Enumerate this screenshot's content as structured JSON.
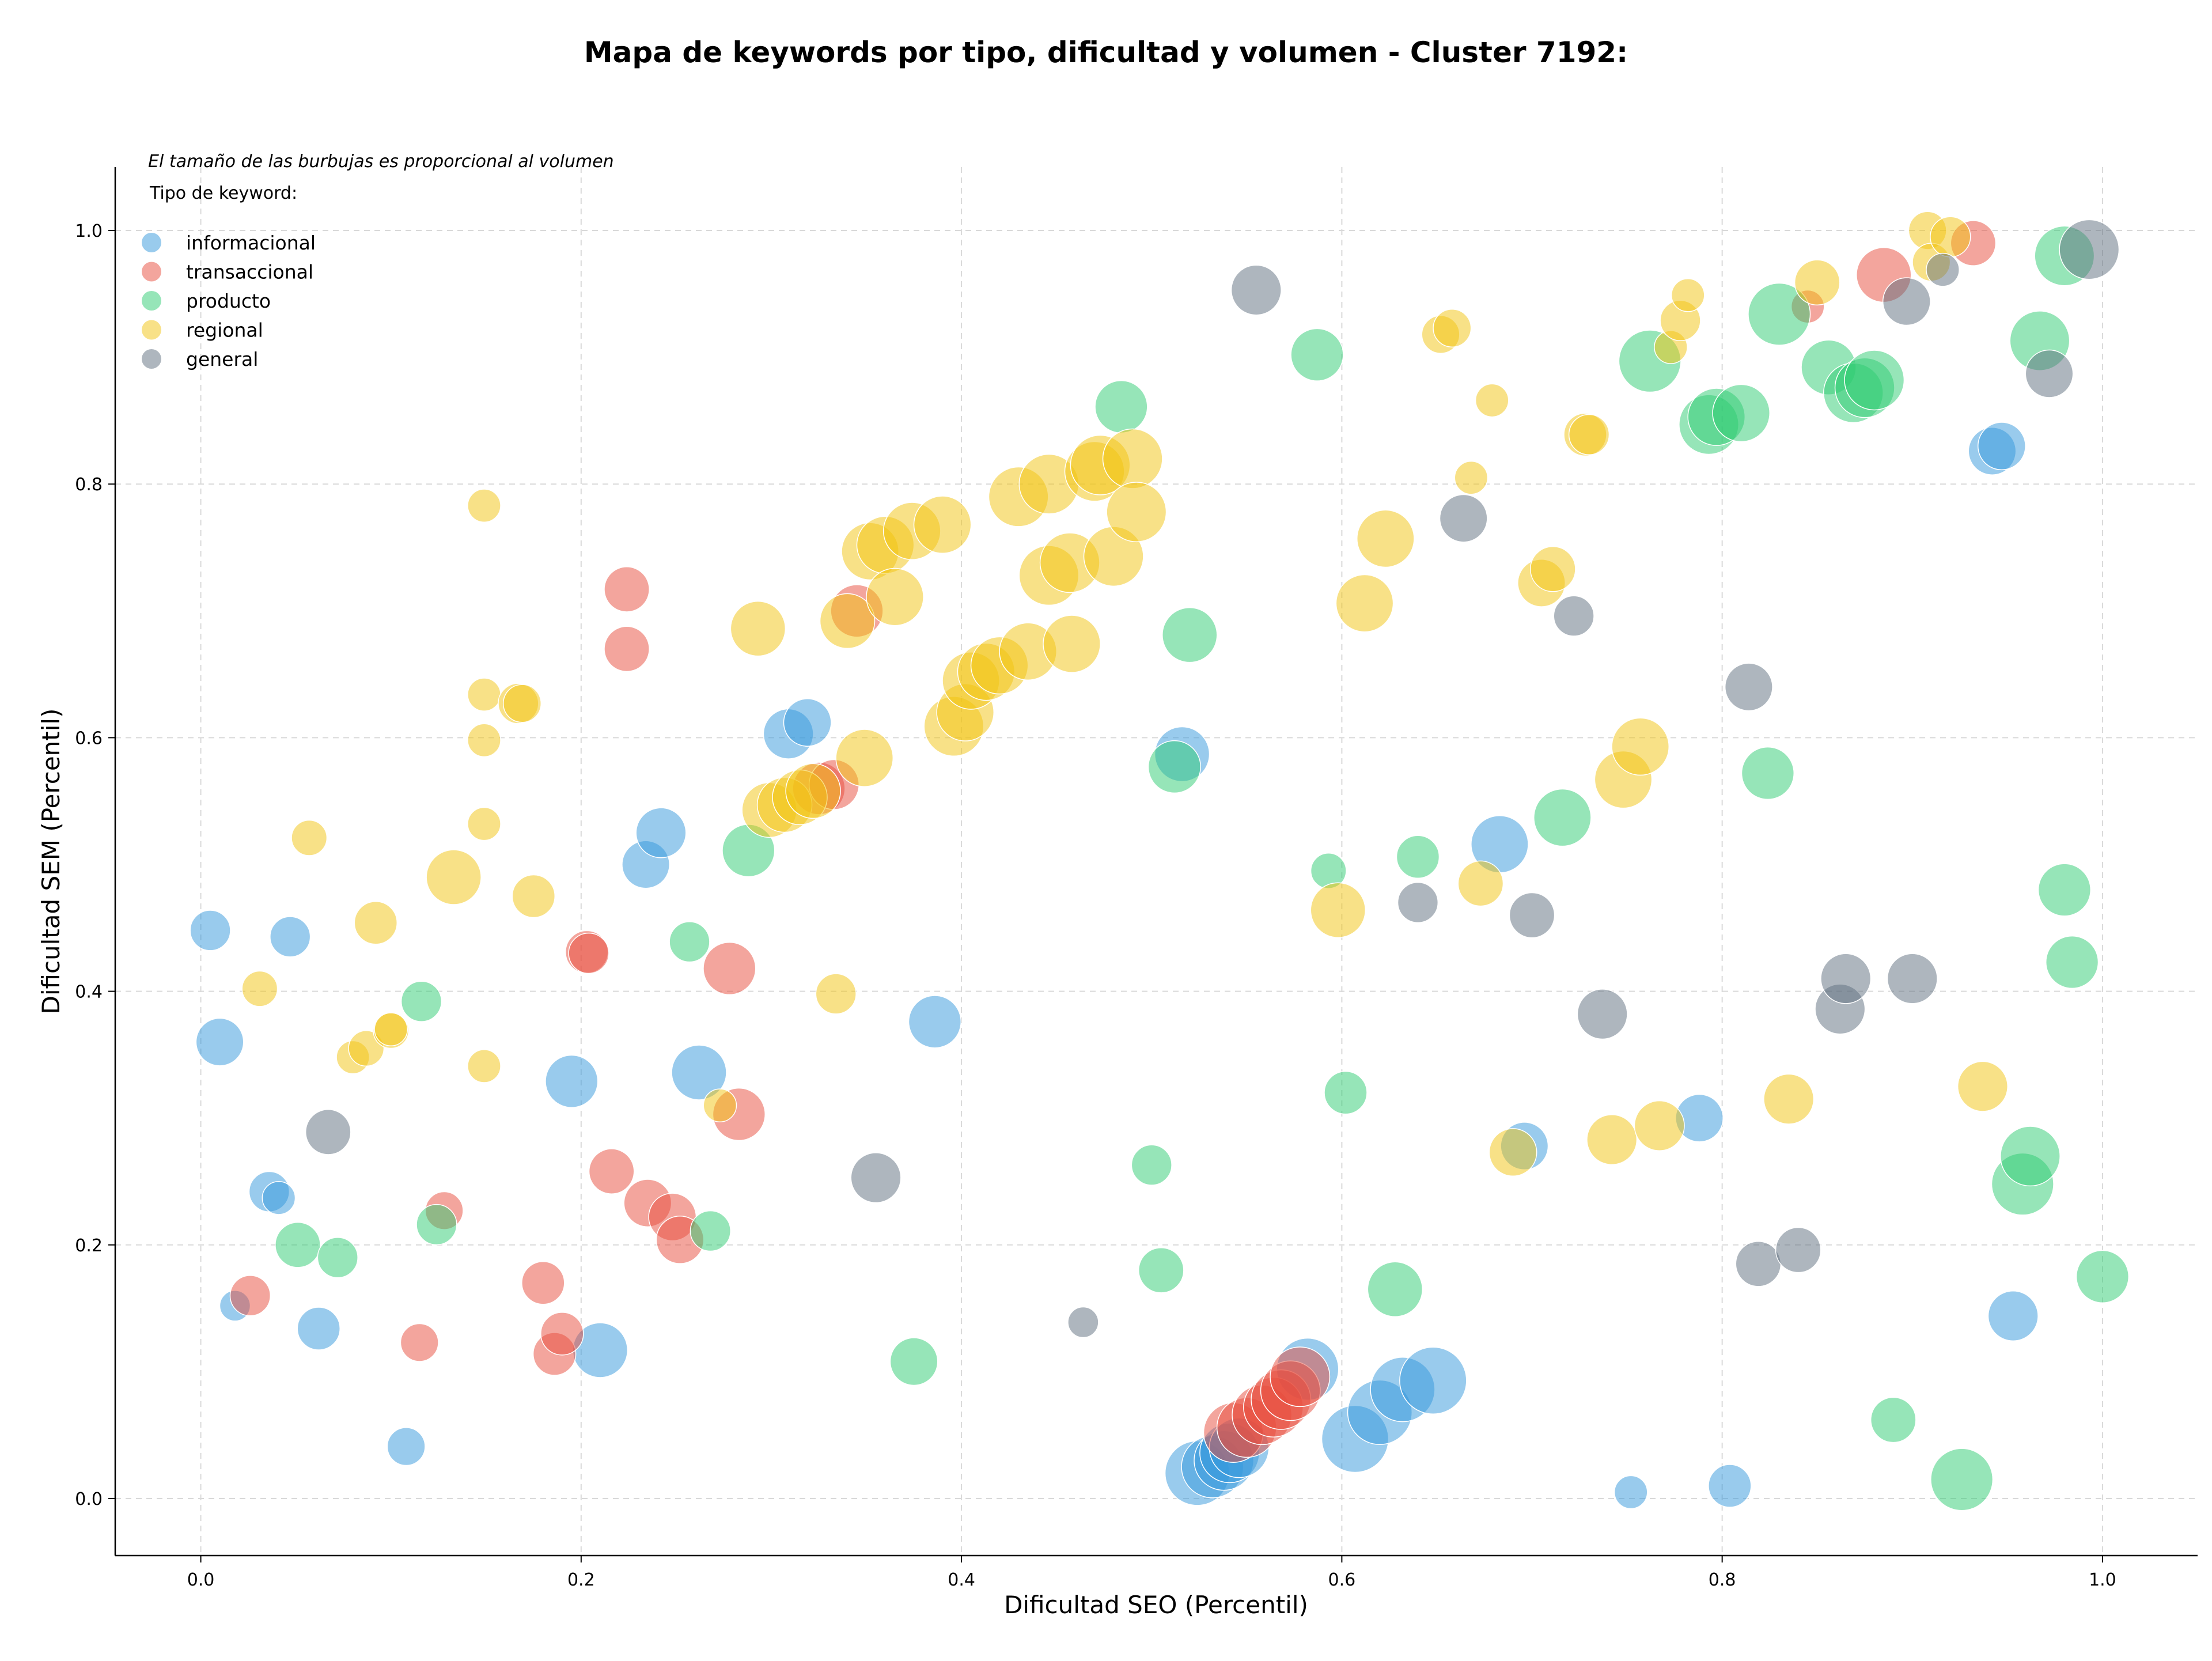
{
  "chart_data": {
    "type": "scatter",
    "title": "Mapa de keywords por tipo, dificultad y volumen - Cluster 7192:",
    "xlabel": "Dificultad SEO (Percentil)",
    "ylabel": "Dificultad SEM (Percentil)",
    "xlim": [
      -0.045,
      1.05
    ],
    "ylim": [
      -0.045,
      1.05
    ],
    "x_ticks": [
      "0.0",
      "0.2",
      "0.4",
      "0.6",
      "0.8",
      "1.0"
    ],
    "y_ticks": [
      "0.0",
      "0.2",
      "0.4",
      "0.6",
      "0.8",
      "1.0"
    ],
    "grid": true,
    "note": "El tamaño de las burbujas es proporcional al volumen",
    "legend": {
      "title": "Tipo de keyword:",
      "position": "top-left"
    },
    "series": [
      {
        "name": "informacional",
        "color": "#3498db",
        "points": [
          {
            "x": 0.005,
            "y": 0.448,
            "s": 0.45
          },
          {
            "x": 0.01,
            "y": 0.36,
            "s": 0.6
          },
          {
            "x": 0.036,
            "y": 0.242,
            "s": 0.45
          },
          {
            "x": 0.041,
            "y": 0.237,
            "s": 0.3
          },
          {
            "x": 0.047,
            "y": 0.443,
            "s": 0.45
          },
          {
            "x": 0.018,
            "y": 0.152,
            "s": 0.25
          },
          {
            "x": 0.062,
            "y": 0.134,
            "s": 0.5
          },
          {
            "x": 0.108,
            "y": 0.041,
            "s": 0.4
          },
          {
            "x": 0.195,
            "y": 0.329,
            "s": 0.7
          },
          {
            "x": 0.21,
            "y": 0.117,
            "s": 0.75
          },
          {
            "x": 0.234,
            "y": 0.5,
            "s": 0.6
          },
          {
            "x": 0.242,
            "y": 0.525,
            "s": 0.65
          },
          {
            "x": 0.262,
            "y": 0.336,
            "s": 0.75
          },
          {
            "x": 0.309,
            "y": 0.603,
            "s": 0.65
          },
          {
            "x": 0.319,
            "y": 0.612,
            "s": 0.6
          },
          {
            "x": 0.386,
            "y": 0.376,
            "s": 0.7
          },
          {
            "x": 0.516,
            "y": 0.587,
            "s": 0.75
          },
          {
            "x": 0.524,
            "y": 0.02,
            "s": 0.95
          },
          {
            "x": 0.532,
            "y": 0.025,
            "s": 0.9
          },
          {
            "x": 0.538,
            "y": 0.03,
            "s": 0.85
          },
          {
            "x": 0.541,
            "y": 0.036,
            "s": 0.85
          },
          {
            "x": 0.546,
            "y": 0.04,
            "s": 0.85
          },
          {
            "x": 0.582,
            "y": 0.102,
            "s": 0.9
          },
          {
            "x": 0.607,
            "y": 0.047,
            "s": 1.0
          },
          {
            "x": 0.62,
            "y": 0.068,
            "s": 0.95
          },
          {
            "x": 0.632,
            "y": 0.086,
            "s": 0.95
          },
          {
            "x": 0.648,
            "y": 0.093,
            "s": 1.0
          },
          {
            "x": 0.683,
            "y": 0.516,
            "s": 0.8
          },
          {
            "x": 0.696,
            "y": 0.278,
            "s": 0.6
          },
          {
            "x": 0.752,
            "y": 0.005,
            "s": 0.3
          },
          {
            "x": 0.788,
            "y": 0.3,
            "s": 0.6
          },
          {
            "x": 0.804,
            "y": 0.01,
            "s": 0.5
          },
          {
            "x": 0.942,
            "y": 0.826,
            "s": 0.6
          },
          {
            "x": 0.947,
            "y": 0.83,
            "s": 0.6
          },
          {
            "x": 0.953,
            "y": 0.144,
            "s": 0.65
          }
        ]
      },
      {
        "name": "transaccional",
        "color": "#e74c3c",
        "points": [
          {
            "x": 0.026,
            "y": 0.16,
            "s": 0.45
          },
          {
            "x": 0.115,
            "y": 0.123,
            "s": 0.4
          },
          {
            "x": 0.128,
            "y": 0.227,
            "s": 0.4
          },
          {
            "x": 0.18,
            "y": 0.17,
            "s": 0.5
          },
          {
            "x": 0.186,
            "y": 0.114,
            "s": 0.5
          },
          {
            "x": 0.19,
            "y": 0.13,
            "s": 0.5
          },
          {
            "x": 0.203,
            "y": 0.431,
            "s": 0.5
          },
          {
            "x": 0.204,
            "y": 0.43,
            "s": 0.45
          },
          {
            "x": 0.216,
            "y": 0.258,
            "s": 0.55
          },
          {
            "x": 0.224,
            "y": 0.717,
            "s": 0.55
          },
          {
            "x": 0.224,
            "y": 0.67,
            "s": 0.55
          },
          {
            "x": 0.235,
            "y": 0.233,
            "s": 0.6
          },
          {
            "x": 0.248,
            "y": 0.222,
            "s": 0.6
          },
          {
            "x": 0.252,
            "y": 0.204,
            "s": 0.6
          },
          {
            "x": 0.278,
            "y": 0.418,
            "s": 0.7
          },
          {
            "x": 0.283,
            "y": 0.303,
            "s": 0.7
          },
          {
            "x": 0.325,
            "y": 0.56,
            "s": 0.7
          },
          {
            "x": 0.333,
            "y": 0.563,
            "s": 0.65
          },
          {
            "x": 0.345,
            "y": 0.7,
            "s": 0.7
          },
          {
            "x": 0.543,
            "y": 0.052,
            "s": 0.85
          },
          {
            "x": 0.55,
            "y": 0.056,
            "s": 0.85
          },
          {
            "x": 0.558,
            "y": 0.066,
            "s": 0.85
          },
          {
            "x": 0.564,
            "y": 0.072,
            "s": 0.85
          },
          {
            "x": 0.568,
            "y": 0.078,
            "s": 0.85
          },
          {
            "x": 0.573,
            "y": 0.085,
            "s": 0.85
          },
          {
            "x": 0.578,
            "y": 0.096,
            "s": 0.85
          },
          {
            "x": 0.845,
            "y": 0.94,
            "s": 0.3
          },
          {
            "x": 0.885,
            "y": 0.965,
            "s": 0.75
          },
          {
            "x": 0.932,
            "y": 0.99,
            "s": 0.55
          }
        ]
      },
      {
        "name": "producto",
        "color": "#2ecc71",
        "points": [
          {
            "x": 0.051,
            "y": 0.2,
            "s": 0.55
          },
          {
            "x": 0.072,
            "y": 0.19,
            "s": 0.45
          },
          {
            "x": 0.116,
            "y": 0.392,
            "s": 0.45
          },
          {
            "x": 0.124,
            "y": 0.216,
            "s": 0.45
          },
          {
            "x": 0.257,
            "y": 0.439,
            "s": 0.45
          },
          {
            "x": 0.268,
            "y": 0.211,
            "s": 0.45
          },
          {
            "x": 0.288,
            "y": 0.511,
            "s": 0.7
          },
          {
            "x": 0.375,
            "y": 0.108,
            "s": 0.6
          },
          {
            "x": 0.484,
            "y": 0.861,
            "s": 0.7
          },
          {
            "x": 0.5,
            "y": 0.263,
            "s": 0.45
          },
          {
            "x": 0.505,
            "y": 0.18,
            "s": 0.55
          },
          {
            "x": 0.512,
            "y": 0.577,
            "s": 0.7
          },
          {
            "x": 0.52,
            "y": 0.681,
            "s": 0.75
          },
          {
            "x": 0.587,
            "y": 0.902,
            "s": 0.7
          },
          {
            "x": 0.593,
            "y": 0.495,
            "s": 0.35
          },
          {
            "x": 0.602,
            "y": 0.32,
            "s": 0.5
          },
          {
            "x": 0.628,
            "y": 0.165,
            "s": 0.75
          },
          {
            "x": 0.64,
            "y": 0.506,
            "s": 0.5
          },
          {
            "x": 0.716,
            "y": 0.537,
            "s": 0.8
          },
          {
            "x": 0.762,
            "y": 0.897,
            "s": 0.9
          },
          {
            "x": 0.793,
            "y": 0.847,
            "s": 0.85
          },
          {
            "x": 0.797,
            "y": 0.853,
            "s": 0.8
          },
          {
            "x": 0.81,
            "y": 0.856,
            "s": 0.8
          },
          {
            "x": 0.824,
            "y": 0.572,
            "s": 0.7
          },
          {
            "x": 0.83,
            "y": 0.934,
            "s": 0.9
          },
          {
            "x": 0.856,
            "y": 0.892,
            "s": 0.75
          },
          {
            "x": 0.869,
            "y": 0.872,
            "s": 0.85
          },
          {
            "x": 0.875,
            "y": 0.876,
            "s": 0.85
          },
          {
            "x": 0.88,
            "y": 0.882,
            "s": 0.85
          },
          {
            "x": 0.89,
            "y": 0.062,
            "s": 0.55
          },
          {
            "x": 0.926,
            "y": 0.015,
            "s": 0.9
          },
          {
            "x": 0.958,
            "y": 0.248,
            "s": 0.9
          },
          {
            "x": 0.962,
            "y": 0.27,
            "s": 0.85
          },
          {
            "x": 0.967,
            "y": 0.913,
            "s": 0.85
          },
          {
            "x": 0.98,
            "y": 0.98,
            "s": 0.85
          },
          {
            "x": 0.98,
            "y": 0.48,
            "s": 0.7
          },
          {
            "x": 0.984,
            "y": 0.423,
            "s": 0.7
          },
          {
            "x": 1.0,
            "y": 0.175,
            "s": 0.7
          }
        ]
      },
      {
        "name": "regional",
        "color": "#f1c40f",
        "points": [
          {
            "x": 0.031,
            "y": 0.402,
            "s": 0.35
          },
          {
            "x": 0.057,
            "y": 0.521,
            "s": 0.35
          },
          {
            "x": 0.08,
            "y": 0.348,
            "s": 0.3
          },
          {
            "x": 0.087,
            "y": 0.355,
            "s": 0.35
          },
          {
            "x": 0.092,
            "y": 0.454,
            "s": 0.5
          },
          {
            "x": 0.1,
            "y": 0.369,
            "s": 0.35
          },
          {
            "x": 0.1,
            "y": 0.37,
            "s": 0.3
          },
          {
            "x": 0.133,
            "y": 0.49,
            "s": 0.75
          },
          {
            "x": 0.149,
            "y": 0.783,
            "s": 0.3
          },
          {
            "x": 0.149,
            "y": 0.634,
            "s": 0.3
          },
          {
            "x": 0.149,
            "y": 0.598,
            "s": 0.3
          },
          {
            "x": 0.149,
            "y": 0.532,
            "s": 0.3
          },
          {
            "x": 0.149,
            "y": 0.341,
            "s": 0.3
          },
          {
            "x": 0.167,
            "y": 0.627,
            "s": 0.45
          },
          {
            "x": 0.169,
            "y": 0.627,
            "s": 0.4
          },
          {
            "x": 0.175,
            "y": 0.475,
            "s": 0.5
          },
          {
            "x": 0.273,
            "y": 0.31,
            "s": 0.3
          },
          {
            "x": 0.293,
            "y": 0.686,
            "s": 0.75
          },
          {
            "x": 0.299,
            "y": 0.543,
            "s": 0.75
          },
          {
            "x": 0.307,
            "y": 0.547,
            "s": 0.75
          },
          {
            "x": 0.315,
            "y": 0.553,
            "s": 0.75
          },
          {
            "x": 0.322,
            "y": 0.558,
            "s": 0.75
          },
          {
            "x": 0.334,
            "y": 0.398,
            "s": 0.45
          },
          {
            "x": 0.34,
            "y": 0.692,
            "s": 0.75
          },
          {
            "x": 0.349,
            "y": 0.584,
            "s": 0.8
          },
          {
            "x": 0.352,
            "y": 0.747,
            "s": 0.8
          },
          {
            "x": 0.36,
            "y": 0.752,
            "s": 0.8
          },
          {
            "x": 0.365,
            "y": 0.711,
            "s": 0.8
          },
          {
            "x": 0.374,
            "y": 0.763,
            "s": 0.8
          },
          {
            "x": 0.39,
            "y": 0.768,
            "s": 0.8
          },
          {
            "x": 0.396,
            "y": 0.609,
            "s": 0.85
          },
          {
            "x": 0.402,
            "y": 0.62,
            "s": 0.8
          },
          {
            "x": 0.405,
            "y": 0.645,
            "s": 0.8
          },
          {
            "x": 0.413,
            "y": 0.652,
            "s": 0.8
          },
          {
            "x": 0.42,
            "y": 0.657,
            "s": 0.8
          },
          {
            "x": 0.43,
            "y": 0.79,
            "s": 0.85
          },
          {
            "x": 0.435,
            "y": 0.668,
            "s": 0.8
          },
          {
            "x": 0.446,
            "y": 0.728,
            "s": 0.85
          },
          {
            "x": 0.446,
            "y": 0.8,
            "s": 0.85
          },
          {
            "x": 0.457,
            "y": 0.738,
            "s": 0.85
          },
          {
            "x": 0.458,
            "y": 0.674,
            "s": 0.8
          },
          {
            "x": 0.47,
            "y": 0.81,
            "s": 0.85
          },
          {
            "x": 0.473,
            "y": 0.815,
            "s": 0.85
          },
          {
            "x": 0.48,
            "y": 0.743,
            "s": 0.85
          },
          {
            "x": 0.49,
            "y": 0.82,
            "s": 0.85
          },
          {
            "x": 0.492,
            "y": 0.778,
            "s": 0.85
          },
          {
            "x": 0.598,
            "y": 0.464,
            "s": 0.75
          },
          {
            "x": 0.612,
            "y": 0.706,
            "s": 0.8
          },
          {
            "x": 0.623,
            "y": 0.757,
            "s": 0.8
          },
          {
            "x": 0.652,
            "y": 0.918,
            "s": 0.4
          },
          {
            "x": 0.658,
            "y": 0.923,
            "s": 0.4
          },
          {
            "x": 0.668,
            "y": 0.805,
            "s": 0.3
          },
          {
            "x": 0.673,
            "y": 0.485,
            "s": 0.55
          },
          {
            "x": 0.679,
            "y": 0.866,
            "s": 0.3
          },
          {
            "x": 0.69,
            "y": 0.273,
            "s": 0.6
          },
          {
            "x": 0.705,
            "y": 0.722,
            "s": 0.6
          },
          {
            "x": 0.711,
            "y": 0.733,
            "s": 0.55
          },
          {
            "x": 0.728,
            "y": 0.839,
            "s": 0.5
          },
          {
            "x": 0.73,
            "y": 0.839,
            "s": 0.45
          },
          {
            "x": 0.742,
            "y": 0.283,
            "s": 0.65
          },
          {
            "x": 0.748,
            "y": 0.567,
            "s": 0.8
          },
          {
            "x": 0.757,
            "y": 0.593,
            "s": 0.8
          },
          {
            "x": 0.767,
            "y": 0.294,
            "s": 0.65
          },
          {
            "x": 0.773,
            "y": 0.908,
            "s": 0.3
          },
          {
            "x": 0.778,
            "y": 0.929,
            "s": 0.45
          },
          {
            "x": 0.782,
            "y": 0.949,
            "s": 0.3
          },
          {
            "x": 0.835,
            "y": 0.315,
            "s": 0.65
          },
          {
            "x": 0.85,
            "y": 0.959,
            "s": 0.55
          },
          {
            "x": 0.908,
            "y": 1.0,
            "s": 0.4
          },
          {
            "x": 0.91,
            "y": 0.975,
            "s": 0.4
          },
          {
            "x": 0.92,
            "y": 0.995,
            "s": 0.45
          },
          {
            "x": 0.937,
            "y": 0.325,
            "s": 0.65
          }
        ]
      },
      {
        "name": "general",
        "color": "#5d6d7e",
        "points": [
          {
            "x": 0.067,
            "y": 0.289,
            "s": 0.55
          },
          {
            "x": 0.355,
            "y": 0.253,
            "s": 0.65
          },
          {
            "x": 0.464,
            "y": 0.139,
            "s": 0.25
          },
          {
            "x": 0.555,
            "y": 0.953,
            "s": 0.65
          },
          {
            "x": 0.64,
            "y": 0.47,
            "s": 0.45
          },
          {
            "x": 0.664,
            "y": 0.773,
            "s": 0.6
          },
          {
            "x": 0.7,
            "y": 0.46,
            "s": 0.55
          },
          {
            "x": 0.722,
            "y": 0.696,
            "s": 0.45
          },
          {
            "x": 0.737,
            "y": 0.382,
            "s": 0.65
          },
          {
            "x": 0.814,
            "y": 0.64,
            "s": 0.6
          },
          {
            "x": 0.819,
            "y": 0.185,
            "s": 0.55
          },
          {
            "x": 0.84,
            "y": 0.196,
            "s": 0.55
          },
          {
            "x": 0.862,
            "y": 0.386,
            "s": 0.65
          },
          {
            "x": 0.865,
            "y": 0.41,
            "s": 0.65
          },
          {
            "x": 0.897,
            "y": 0.944,
            "s": 0.6
          },
          {
            "x": 0.9,
            "y": 0.41,
            "s": 0.65
          },
          {
            "x": 0.916,
            "y": 0.969,
            "s": 0.3
          },
          {
            "x": 0.972,
            "y": 0.887,
            "s": 0.6
          },
          {
            "x": 0.993,
            "y": 0.985,
            "s": 0.85
          }
        ]
      }
    ]
  }
}
